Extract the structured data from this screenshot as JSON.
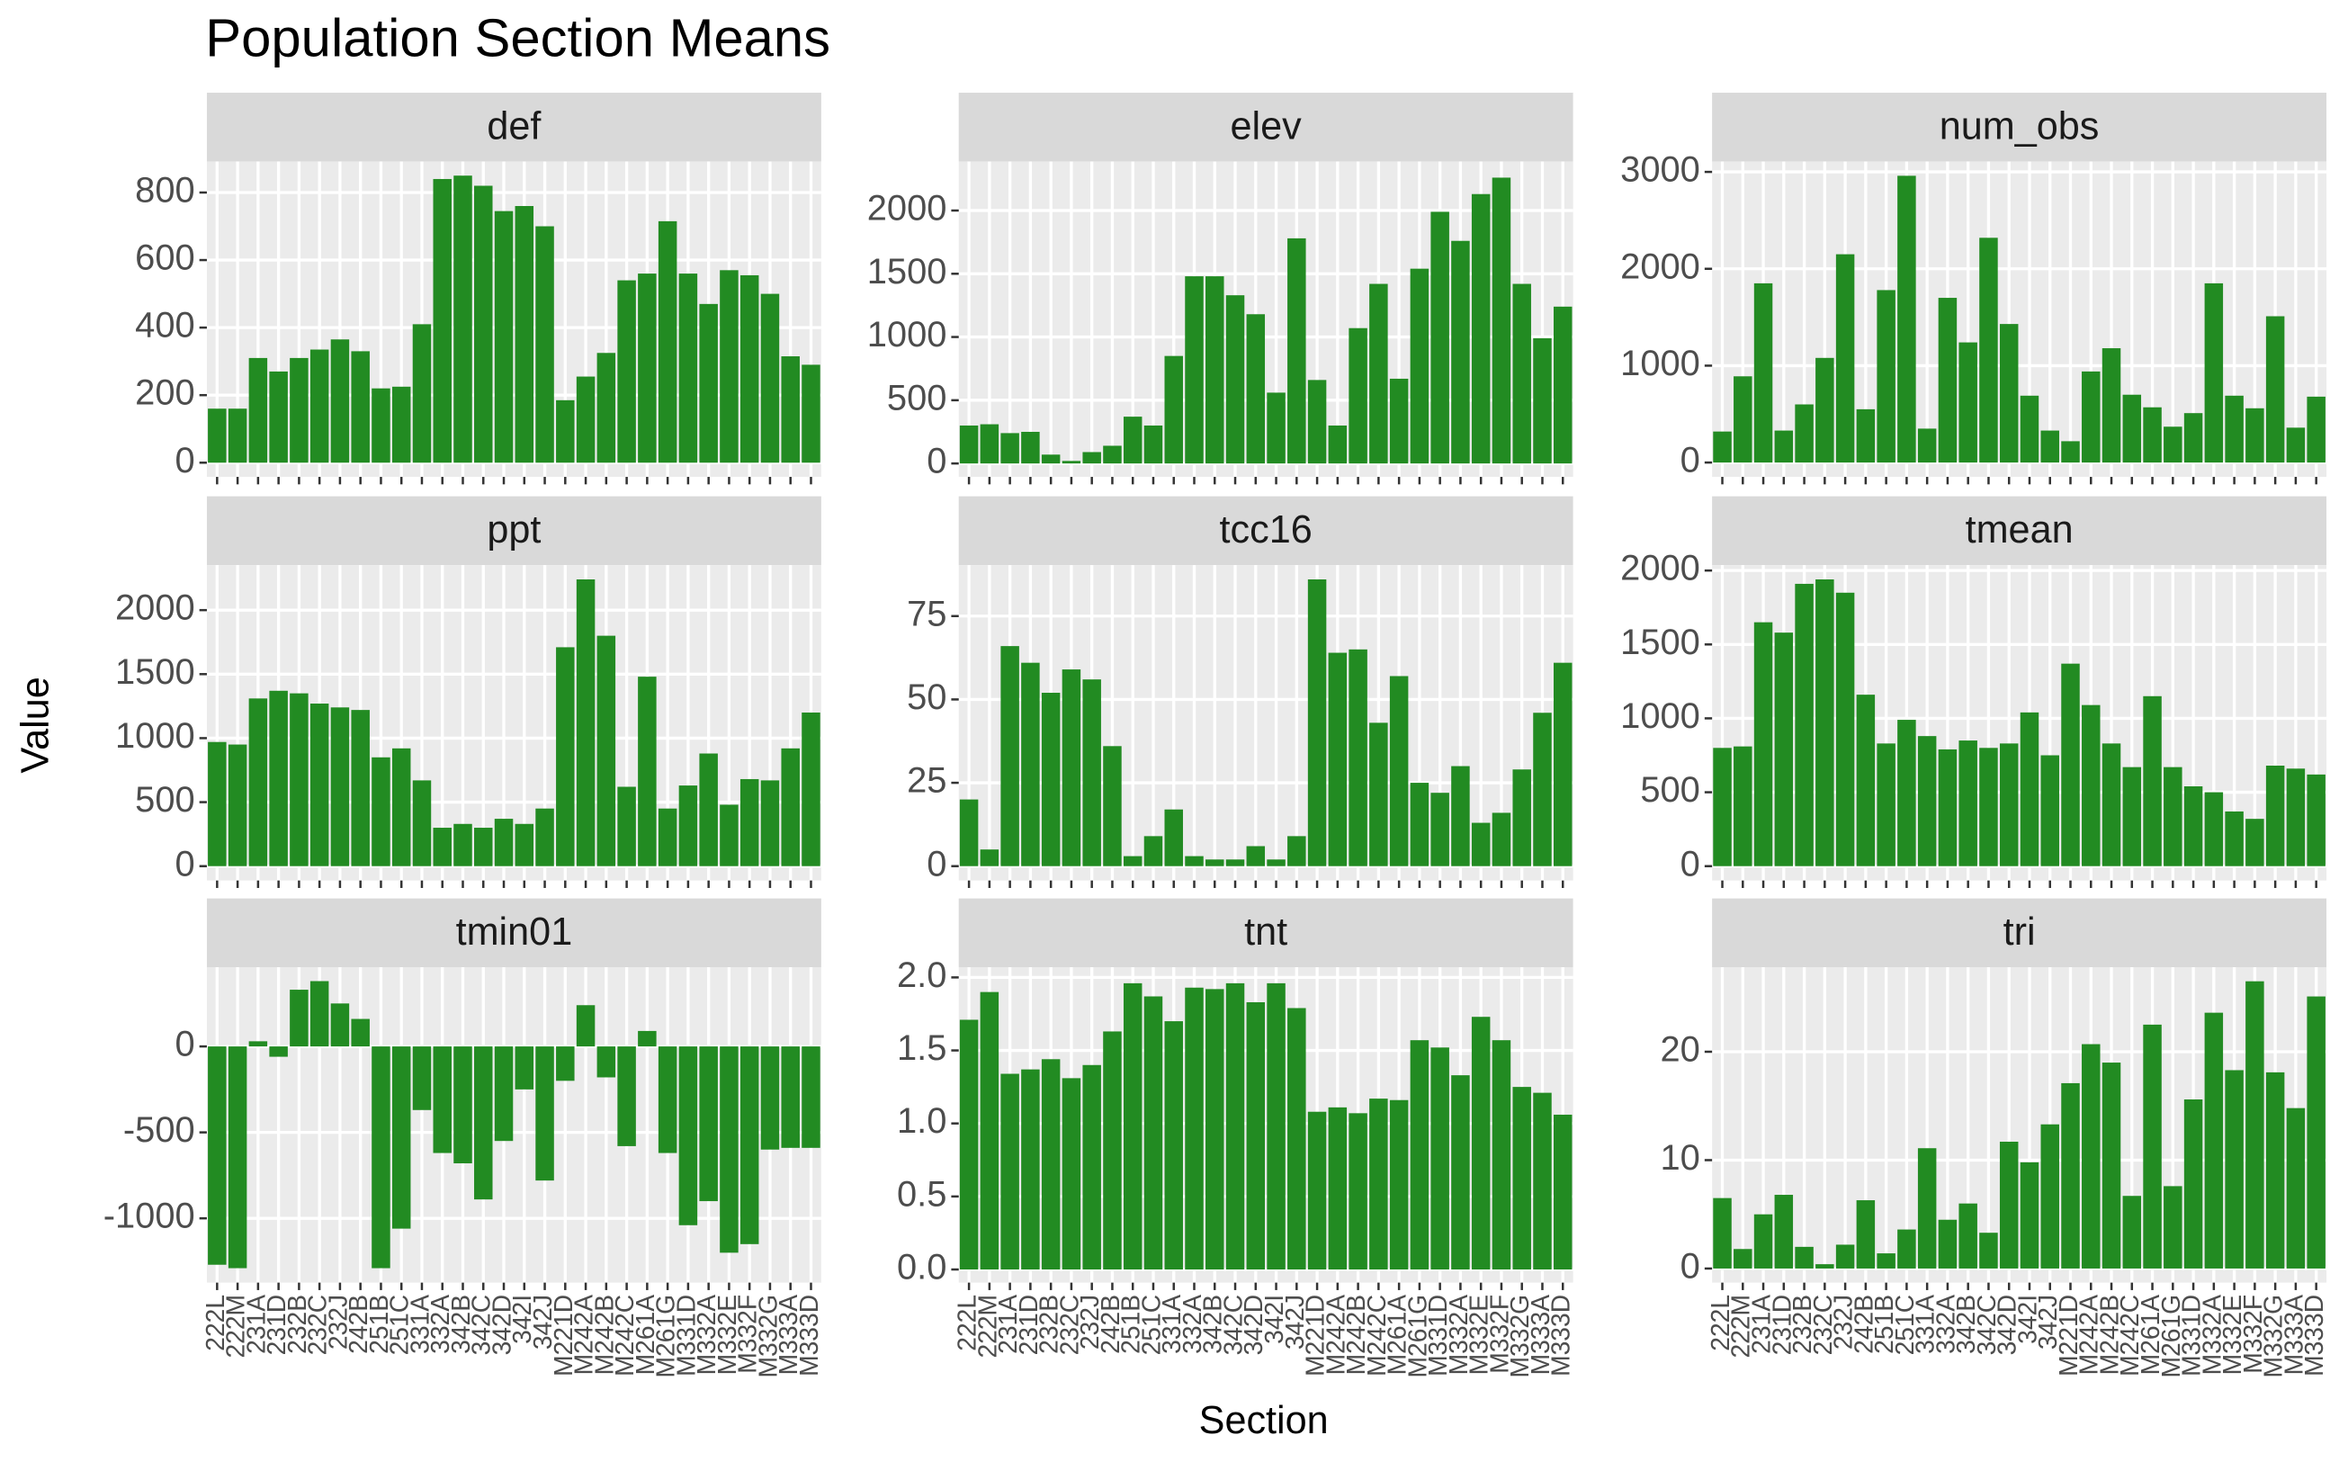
{
  "chart_data": {
    "type": "bar",
    "title": "Population Section Means",
    "x_label": "Section",
    "y_label": "Value",
    "color": "#228b22",
    "grid": true,
    "categories": [
      "222L",
      "222M",
      "231A",
      "231D",
      "232B",
      "232C",
      "232J",
      "242B",
      "251B",
      "251C",
      "331A",
      "332A",
      "342B",
      "342C",
      "342D",
      "342I",
      "342J",
      "M221D",
      "M242A",
      "M242B",
      "M242C",
      "M261A",
      "M261G",
      "M331D",
      "M332A",
      "M332E",
      "M332F",
      "M332G",
      "M333A",
      "M333D"
    ],
    "facets": [
      {
        "title": "def",
        "ylim": [
          -42,
          892
        ],
        "yticks": [
          0,
          200,
          400,
          600,
          800
        ],
        "values": [
          160,
          160,
          310,
          270,
          310,
          335,
          365,
          330,
          220,
          225,
          410,
          840,
          850,
          820,
          745,
          760,
          700,
          185,
          255,
          325,
          540,
          560,
          715,
          560,
          470,
          570,
          555,
          500,
          315,
          290
        ]
      },
      {
        "title": "elev",
        "ylim": [
          -106,
          2388
        ],
        "yticks": [
          0,
          500,
          1000,
          1500,
          2000
        ],
        "values": [
          300,
          310,
          240,
          250,
          70,
          20,
          90,
          140,
          370,
          300,
          850,
          1480,
          1480,
          1330,
          1180,
          560,
          1780,
          660,
          300,
          1070,
          1420,
          670,
          1540,
          1990,
          1760,
          2130,
          2260,
          1420,
          990,
          1240
        ]
      },
      {
        "title": "num_obs",
        "ylim": [
          -148,
          3108
        ],
        "yticks": [
          0,
          1000,
          2000,
          3000
        ],
        "values": [
          320,
          890,
          1850,
          330,
          600,
          1080,
          2150,
          550,
          1780,
          2960,
          350,
          1700,
          1240,
          2320,
          1430,
          690,
          330,
          220,
          940,
          1180,
          700,
          570,
          370,
          510,
          1850,
          690,
          560,
          1510,
          360,
          680
        ]
      },
      {
        "title": "ppt",
        "ylim": [
          -112,
          2352
        ],
        "yticks": [
          0,
          500,
          1000,
          1500,
          2000
        ],
        "values": [
          970,
          950,
          1310,
          1370,
          1350,
          1270,
          1240,
          1220,
          850,
          920,
          670,
          300,
          330,
          300,
          370,
          330,
          450,
          1710,
          2240,
          1800,
          620,
          1480,
          450,
          630,
          880,
          480,
          680,
          670,
          920,
          1200
        ]
      },
      {
        "title": "tcc16",
        "ylim": [
          -4.3,
          90.3
        ],
        "yticks": [
          0,
          25,
          50,
          75
        ],
        "values": [
          20,
          5,
          66,
          61,
          52,
          59,
          56,
          36,
          3,
          9,
          17,
          3,
          2,
          2,
          6,
          2,
          9,
          86,
          64,
          65,
          43,
          57,
          25,
          22,
          30,
          13,
          16,
          29,
          46,
          61
        ]
      },
      {
        "title": "tmean",
        "ylim": [
          -97,
          2037
        ],
        "yticks": [
          0,
          500,
          1000,
          1500,
          2000
        ],
        "values": [
          800,
          810,
          1650,
          1580,
          1910,
          1940,
          1850,
          1160,
          830,
          990,
          880,
          790,
          850,
          800,
          830,
          1040,
          750,
          1370,
          1090,
          830,
          670,
          1150,
          670,
          540,
          500,
          370,
          320,
          680,
          660,
          620
        ]
      },
      {
        "title": "tmin01",
        "ylim": [
          -1374,
          461
        ],
        "yticks": [
          -1000,
          -500,
          0
        ],
        "values": [
          -1270,
          -1290,
          30,
          -60,
          330,
          380,
          250,
          160,
          -1290,
          -1060,
          -370,
          -620,
          -680,
          -890,
          -550,
          -250,
          -780,
          -200,
          240,
          -180,
          -580,
          90,
          -620,
          -1040,
          -900,
          -1200,
          -1150,
          -600,
          -590,
          -590
        ]
      },
      {
        "title": "tnt",
        "ylim": [
          -0.09,
          2.07
        ],
        "yticks": [
          {
            "value": 0,
            "label": "0.0"
          },
          0.5,
          {
            "value": 1,
            "label": "1.0"
          },
          1.5,
          {
            "value": 2,
            "label": "2.0"
          }
        ],
        "values": [
          1.71,
          1.9,
          1.34,
          1.37,
          1.44,
          1.31,
          1.4,
          1.63,
          1.96,
          1.87,
          1.7,
          1.93,
          1.92,
          1.96,
          1.83,
          1.96,
          1.79,
          1.08,
          1.11,
          1.07,
          1.17,
          1.16,
          1.57,
          1.52,
          1.33,
          1.73,
          1.57,
          1.25,
          1.21,
          1.06
        ]
      },
      {
        "title": "tri",
        "ylim": [
          -1.3,
          27.8
        ],
        "yticks": [
          0,
          10,
          20
        ],
        "values": [
          6.5,
          1.8,
          5,
          6.8,
          2,
          0.4,
          2.2,
          6.3,
          1.4,
          3.6,
          11.1,
          4.5,
          6,
          3.3,
          11.7,
          9.8,
          13.3,
          17.1,
          20.7,
          19,
          6.7,
          22.5,
          7.6,
          15.6,
          23.6,
          18.3,
          26.5,
          18.1,
          14.8,
          25.1
        ]
      }
    ]
  }
}
